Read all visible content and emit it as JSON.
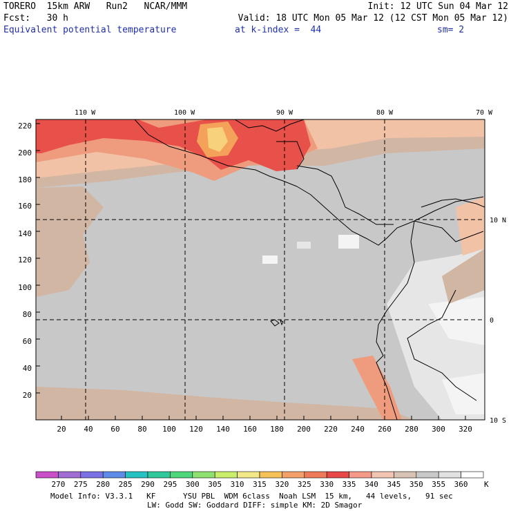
{
  "header": {
    "model": "TORERO  15km ARW   Run2   NCAR/MMM",
    "init": "Init: 12 UTC Sun 04 Mar 12",
    "fcst": "Fcst:   30 h",
    "valid": "Valid: 18 UTC Mon 05 Mar 12 (12 CST Mon 05 Mar 12)",
    "field": "Equivalent potential temperature",
    "level": "at k-index =  44",
    "smooth": "sm= 2"
  },
  "map": {
    "lon_labels": [
      "110 W",
      "100 W",
      "90 W",
      "80 W",
      "70 W"
    ],
    "lat_labels": [
      "10 N",
      "0",
      "10 S"
    ],
    "y_ticks": [
      "220",
      "200",
      "180",
      "160",
      "140",
      "120",
      "100",
      "80",
      "60",
      "40",
      "20"
    ],
    "x_ticks": [
      "20",
      "40",
      "60",
      "80",
      "100",
      "120",
      "140",
      "160",
      "180",
      "200",
      "220",
      "240",
      "260",
      "280",
      "300",
      "320"
    ],
    "colors": {
      "background": "#c8c8c8",
      "land_light": "#e6e6e6",
      "land_white": "#f4f4f4",
      "tan": "#d2b6a4",
      "peach": "#f1c2a6",
      "salmon": "#ef9c7e",
      "red": "#e8504a",
      "orange": "#f4a25a",
      "yellow": "#f7d27a"
    }
  },
  "colorbar": {
    "unit": "K",
    "labels": [
      "270",
      "275",
      "280",
      "285",
      "290",
      "295",
      "300",
      "305",
      "310",
      "315",
      "320",
      "325",
      "330",
      "335",
      "340",
      "345",
      "350",
      "355",
      "360"
    ],
    "colors": [
      "#c84fc8",
      "#a06ed2",
      "#7a72e4",
      "#5c8ce8",
      "#26c2c2",
      "#2ec89a",
      "#4ed67a",
      "#8ee070",
      "#caee6a",
      "#f2e888",
      "#f6c258",
      "#f3a06a",
      "#ee7a5a",
      "#e84848",
      "#f59a88",
      "#f2c4b2",
      "#d8c2b4",
      "#c8c8c8",
      "#e2e2e2",
      "#ffffff"
    ]
  },
  "footer": {
    "line1": "Model Info: V3.3.1   KF      YSU PBL  WDM 6class  Noah LSM  15 km,   44 levels,   91 sec",
    "line2": "LW: Godd SW: Goddard DIFF: simple KM: 2D Smagor"
  }
}
